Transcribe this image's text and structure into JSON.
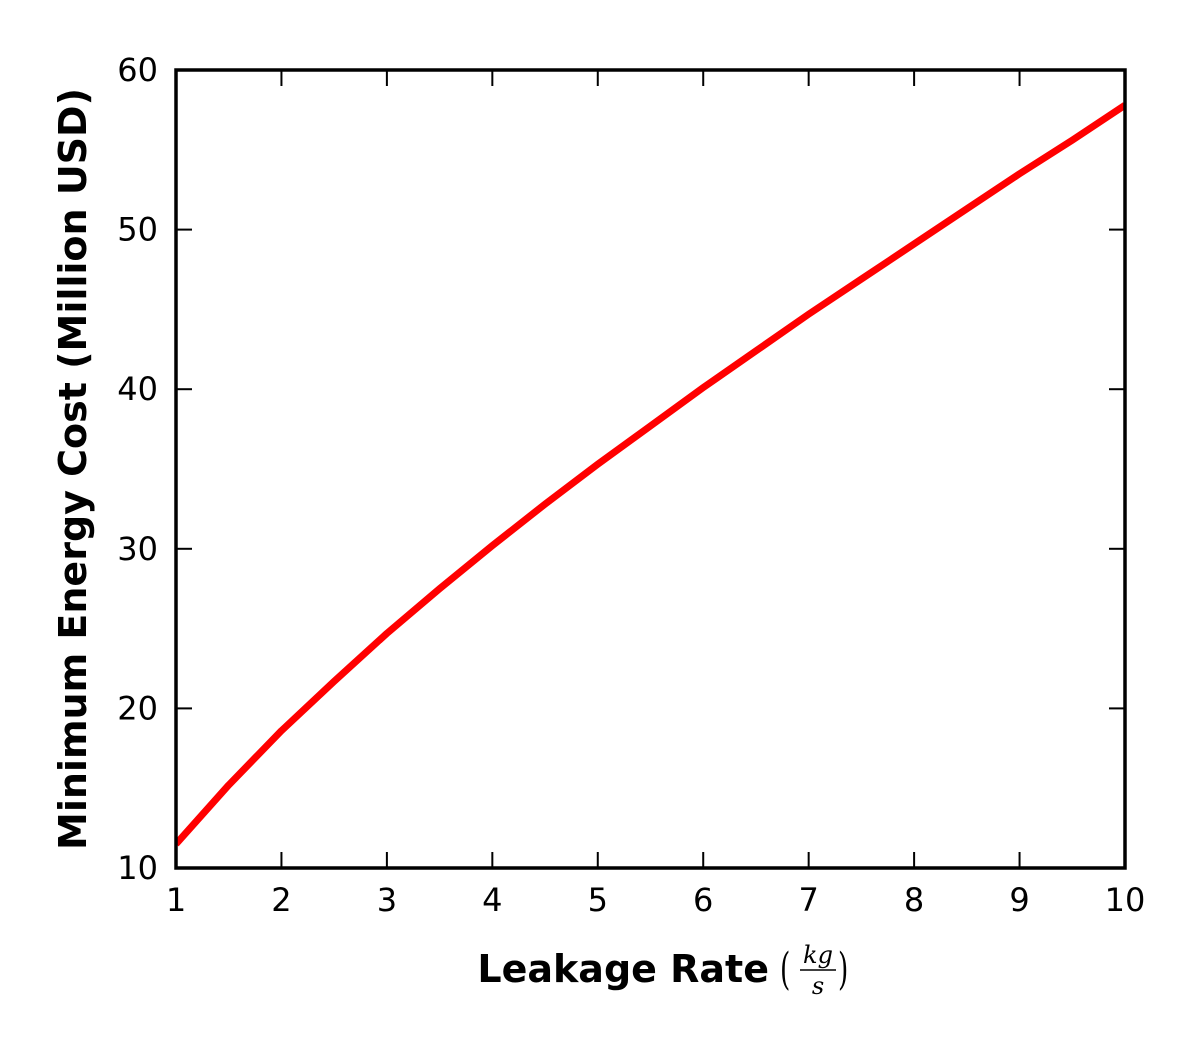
{
  "chart_data": {
    "type": "line",
    "title": "",
    "xlabel": "Leakage Rate",
    "xlabel_unit": {
      "numerator": "kg",
      "denominator": "s"
    },
    "ylabel": "Minimum Energy Cost (Million USD)",
    "xlim": [
      1,
      10
    ],
    "ylim": [
      10,
      60
    ],
    "xticks": [
      1,
      2,
      3,
      4,
      5,
      6,
      7,
      8,
      9,
      10
    ],
    "yticks": [
      10,
      20,
      30,
      40,
      50,
      60
    ],
    "grid": false,
    "legend": "none",
    "series": [
      {
        "color": "#ff0000",
        "x": [
          1.0,
          1.5,
          2.0,
          2.5,
          3.0,
          3.5,
          4.0,
          4.5,
          5.0,
          5.5,
          6.0,
          6.5,
          7.0,
          7.5,
          8.0,
          8.5,
          9.0,
          9.5,
          10.0
        ],
        "y": [
          11.5,
          15.2,
          18.6,
          21.7,
          24.7,
          27.5,
          30.2,
          32.8,
          35.3,
          37.7,
          40.1,
          42.4,
          44.7,
          46.9,
          49.1,
          51.3,
          53.5,
          55.6,
          57.8
        ]
      }
    ]
  }
}
